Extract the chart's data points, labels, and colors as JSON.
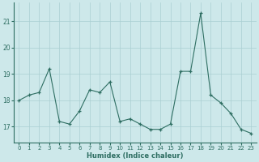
{
  "x": [
    0,
    1,
    2,
    3,
    4,
    5,
    6,
    7,
    8,
    9,
    10,
    11,
    12,
    13,
    14,
    15,
    16,
    17,
    18,
    19,
    20,
    21,
    22,
    23
  ],
  "y": [
    18.0,
    18.2,
    18.3,
    19.2,
    17.2,
    17.1,
    17.6,
    18.4,
    18.3,
    18.7,
    17.2,
    17.3,
    17.1,
    16.9,
    16.9,
    17.1,
    19.1,
    19.1,
    21.3,
    18.2,
    17.9,
    17.5,
    16.9,
    16.75
  ],
  "xlabel": "Humidex (Indice chaleur)",
  "yticks": [
    17,
    18,
    19,
    20,
    21
  ],
  "ylim": [
    16.4,
    21.7
  ],
  "xlim": [
    -0.5,
    23.5
  ],
  "line_color": "#2e6e62",
  "marker_color": "#2e6e62",
  "bg_color": "#cde8ea",
  "grid_color": "#aacfd2",
  "axis_color": "#2e6e62"
}
